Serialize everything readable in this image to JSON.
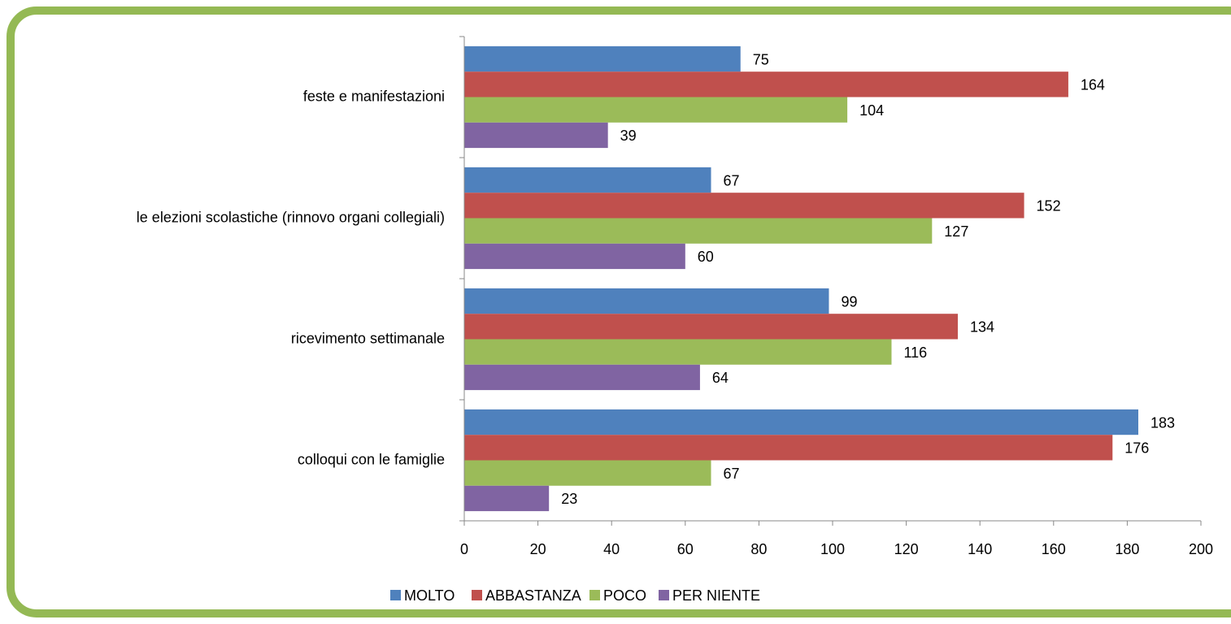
{
  "chart_data": {
    "type": "hbar",
    "categories": [
      "feste e manifestazioni",
      "le elezioni scolastiche (rinnovo organi collegiali)",
      "ricevimento settimanale",
      "colloqui con le famiglie"
    ],
    "series": [
      {
        "name": "MOLTO",
        "color": "#4f81bd",
        "values": [
          75,
          67,
          99,
          183
        ]
      },
      {
        "name": "ABBASTANZA",
        "color": "#c0504d",
        "values": [
          164,
          152,
          134,
          176
        ]
      },
      {
        "name": "POCO",
        "color": "#9bbb59",
        "values": [
          104,
          127,
          116,
          67
        ]
      },
      {
        "name": "PER NIENTE",
        "color": "#8064a2",
        "values": [
          39,
          60,
          64,
          23
        ]
      }
    ],
    "xlim": [
      0,
      200
    ],
    "xticks": [
      0,
      20,
      40,
      60,
      80,
      100,
      120,
      140,
      160,
      180,
      200
    ],
    "legend": "bottom"
  }
}
